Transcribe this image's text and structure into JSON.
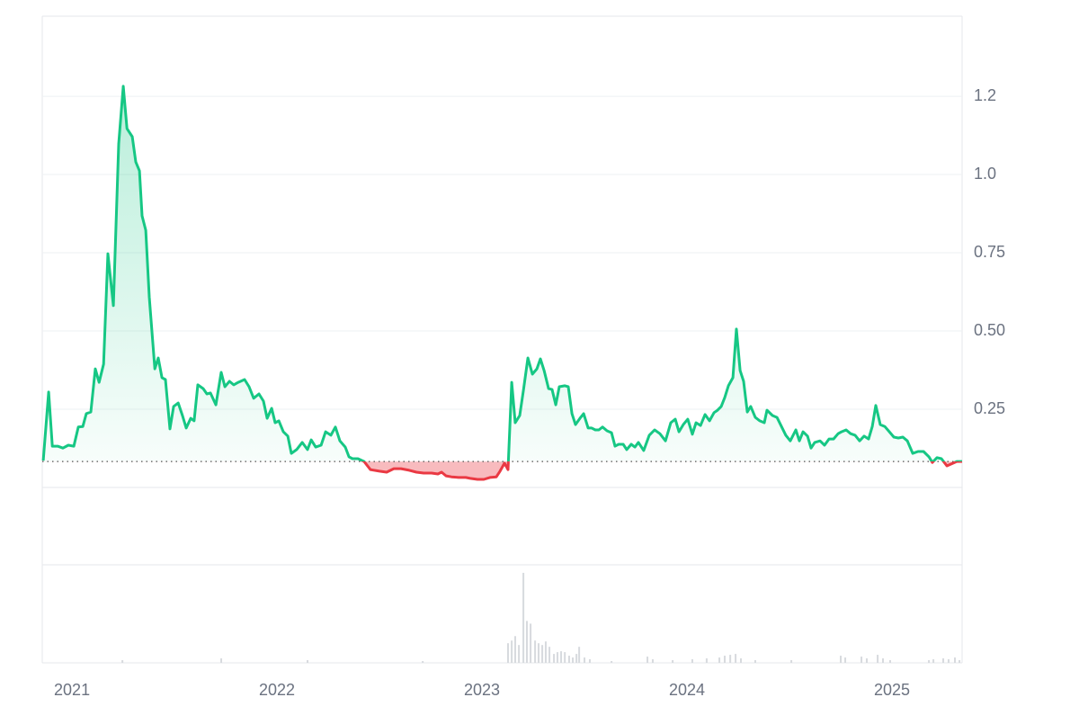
{
  "chart_data": {
    "type": "area",
    "x": [
      2020.86,
      2020.886,
      2020.904,
      2020.93,
      2020.956,
      2020.982,
      2021.009,
      2021.031,
      2021.053,
      2021.07,
      2021.092,
      2021.114,
      2021.132,
      2021.154,
      2021.175,
      2021.202,
      2021.228,
      2021.25,
      2021.268,
      2021.294,
      2021.311,
      2021.329,
      2021.342,
      2021.36,
      2021.377,
      2021.404,
      2021.421,
      2021.439,
      2021.456,
      2021.478,
      2021.496,
      2021.518,
      2021.539,
      2021.557,
      2021.579,
      2021.596,
      2021.614,
      2021.64,
      2021.658,
      2021.675,
      2021.702,
      2021.728,
      2021.746,
      2021.768,
      2021.789,
      2021.811,
      2021.842,
      2021.864,
      2021.886,
      2021.912,
      2021.934,
      2021.952,
      2021.974,
      2021.991,
      2022.009,
      2022.031,
      2022.053,
      2022.07,
      2022.096,
      2022.123,
      2022.149,
      2022.167,
      2022.189,
      2022.215,
      2022.237,
      2022.263,
      2022.285,
      2022.307,
      2022.333,
      2022.351,
      2022.368,
      2022.395,
      2022.425,
      2022.456,
      2022.5,
      2022.535,
      2022.57,
      2022.605,
      2022.645,
      2022.68,
      2022.715,
      2022.754,
      2022.785,
      2022.803,
      2022.825,
      2022.851,
      2022.886,
      2022.921,
      2022.943,
      2022.978,
      2023.009,
      2023.039,
      2023.07,
      2023.088,
      2023.11,
      2023.127,
      2023.145,
      2023.162,
      2023.184,
      2023.202,
      2023.224,
      2023.246,
      2023.268,
      2023.285,
      2023.303,
      2023.325,
      2023.342,
      2023.36,
      2023.377,
      2023.404,
      2023.421,
      2023.439,
      2023.456,
      2023.478,
      2023.496,
      2023.518,
      2023.535,
      2023.553,
      2023.57,
      2023.588,
      2023.61,
      2023.632,
      2023.649,
      2023.667,
      2023.689,
      2023.706,
      2023.728,
      2023.746,
      2023.763,
      2023.789,
      2023.816,
      2023.842,
      2023.868,
      2023.895,
      2023.921,
      2023.943,
      2023.961,
      2023.982,
      2024.004,
      2024.026,
      2024.044,
      2024.066,
      2024.088,
      2024.11,
      2024.132,
      2024.149,
      2024.167,
      2024.184,
      2024.202,
      2024.224,
      2024.241,
      2024.259,
      2024.276,
      2024.294,
      2024.311,
      2024.333,
      2024.355,
      2024.377,
      2024.39,
      2024.417,
      2024.439,
      2024.461,
      2024.482,
      2024.504,
      2024.531,
      2024.548,
      2024.566,
      2024.588,
      2024.605,
      2024.623,
      2024.649,
      2024.671,
      2024.693,
      2024.715,
      2024.737,
      2024.754,
      2024.776,
      2024.798,
      2024.82,
      2024.842,
      2024.864,
      2024.886,
      2024.904,
      2024.921,
      2024.943,
      2024.965,
      2024.987,
      2025.009,
      2025.031,
      2025.053,
      2025.075,
      2025.101,
      2025.127,
      2025.154,
      2025.18,
      2025.197,
      2025.219,
      2025.241,
      2025.268,
      2025.289,
      2025.316,
      2025.342
    ],
    "values": [
      0.086,
      0.305,
      0.132,
      0.132,
      0.126,
      0.135,
      0.132,
      0.193,
      0.195,
      0.236,
      0.241,
      0.379,
      0.336,
      0.394,
      0.747,
      0.581,
      1.098,
      1.282,
      1.147,
      1.121,
      1.04,
      1.012,
      0.868,
      0.822,
      0.609,
      0.379,
      0.414,
      0.351,
      0.345,
      0.187,
      0.259,
      0.27,
      0.23,
      0.19,
      0.221,
      0.213,
      0.328,
      0.316,
      0.299,
      0.302,
      0.264,
      0.368,
      0.322,
      0.339,
      0.328,
      0.336,
      0.345,
      0.322,
      0.285,
      0.299,
      0.276,
      0.221,
      0.253,
      0.207,
      0.213,
      0.178,
      0.164,
      0.109,
      0.121,
      0.144,
      0.121,
      0.152,
      0.129,
      0.135,
      0.178,
      0.167,
      0.193,
      0.149,
      0.129,
      0.098,
      0.092,
      0.092,
      0.083,
      0.057,
      0.052,
      0.049,
      0.06,
      0.06,
      0.055,
      0.049,
      0.046,
      0.046,
      0.043,
      0.049,
      0.037,
      0.034,
      0.032,
      0.032,
      0.029,
      0.026,
      0.026,
      0.032,
      0.034,
      0.052,
      0.078,
      0.057,
      0.336,
      0.207,
      0.23,
      0.31,
      0.414,
      0.362,
      0.379,
      0.411,
      0.374,
      0.316,
      0.313,
      0.264,
      0.322,
      0.325,
      0.322,
      0.236,
      0.201,
      0.221,
      0.236,
      0.19,
      0.19,
      0.184,
      0.184,
      0.193,
      0.181,
      0.175,
      0.132,
      0.138,
      0.138,
      0.121,
      0.138,
      0.129,
      0.144,
      0.118,
      0.167,
      0.184,
      0.172,
      0.149,
      0.207,
      0.218,
      0.178,
      0.201,
      0.218,
      0.17,
      0.207,
      0.198,
      0.233,
      0.213,
      0.239,
      0.247,
      0.259,
      0.287,
      0.325,
      0.351,
      0.506,
      0.374,
      0.339,
      0.241,
      0.259,
      0.224,
      0.213,
      0.207,
      0.247,
      0.23,
      0.224,
      0.195,
      0.167,
      0.149,
      0.184,
      0.149,
      0.178,
      0.164,
      0.126,
      0.144,
      0.149,
      0.135,
      0.155,
      0.155,
      0.172,
      0.178,
      0.184,
      0.172,
      0.167,
      0.149,
      0.164,
      0.155,
      0.195,
      0.262,
      0.201,
      0.195,
      0.178,
      0.161,
      0.158,
      0.161,
      0.149,
      0.109,
      0.115,
      0.115,
      0.098,
      0.08,
      0.095,
      0.092,
      0.069,
      0.075,
      0.083,
      0.083
    ],
    "baseline": 0.083,
    "color": "#16c784",
    "down_color": "#ea3943",
    "xlim": [
      2020.855,
      2025.342
    ],
    "ylim": [
      0,
      1.506
    ],
    "xticks": [
      2021,
      2022,
      2023,
      2024,
      2025
    ],
    "yticks": [
      0.25,
      {
        "value": 0.5,
        "label": "0.50"
      },
      0.75,
      {
        "value": 1,
        "label": "1.0"
      },
      {
        "value": 1.25,
        "label": "1.2"
      }
    ],
    "grid": true,
    "volume": {
      "color": "#d7dade",
      "ylim": [
        0,
        110
      ],
      "x": [
        2021.246,
        2021.728,
        2022.149,
        2022.711,
        2023.127,
        2023.145,
        2023.162,
        2023.18,
        2023.202,
        2023.219,
        2023.237,
        2023.259,
        2023.276,
        2023.294,
        2023.311,
        2023.329,
        2023.351,
        2023.368,
        2023.386,
        2023.404,
        2023.425,
        2023.443,
        2023.461,
        2023.474,
        2023.5,
        2023.526,
        2023.632,
        2023.807,
        2023.833,
        2023.93,
        2024.026,
        2024.096,
        2024.158,
        2024.184,
        2024.211,
        2024.237,
        2024.263,
        2024.333,
        2024.509,
        2024.75,
        2024.772,
        2024.851,
        2024.877,
        2024.93,
        2024.956,
        2024.991,
        2025.18,
        2025.202,
        2025.25,
        2025.276,
        2025.307,
        2025.329
      ],
      "values": [
        3,
        5,
        3,
        2,
        22,
        25,
        30,
        20,
        101,
        47,
        44,
        25,
        22,
        20,
        24,
        18,
        10,
        12,
        13,
        12,
        8,
        6,
        10,
        18,
        6,
        4,
        2,
        7,
        4,
        3,
        4,
        5,
        6,
        8,
        9,
        10,
        5,
        3,
        3,
        8,
        6,
        7,
        5,
        9,
        5,
        3,
        3,
        4,
        5,
        4,
        6,
        3
      ]
    }
  }
}
